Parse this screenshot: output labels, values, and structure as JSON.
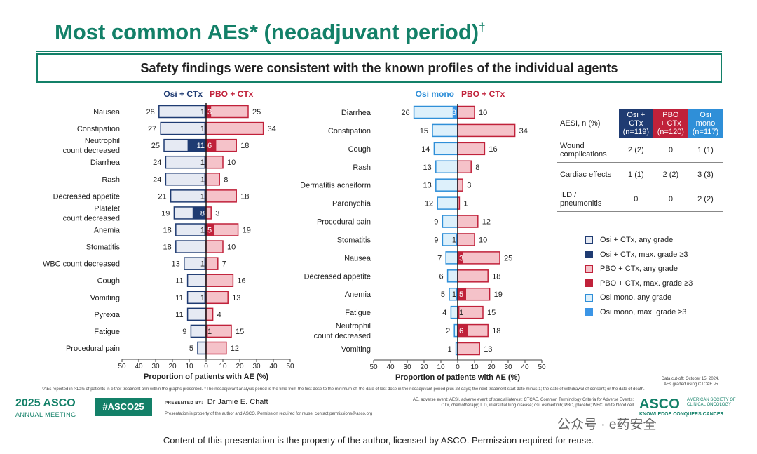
{
  "title": "Most common AEs* (neoadjuvant period)",
  "title_mark": "†",
  "banner": "Safety findings were consistent with the known profiles of the individual agents",
  "chart_data": [
    {
      "type": "bar",
      "subtype": "butterfly",
      "left_header": "Osi + CTx",
      "right_header": "PBO + CTx",
      "xlabel": "Proportion of patients with AE (%)",
      "xlim": [
        -50,
        50
      ],
      "xticks": [
        "50",
        "40",
        "30",
        "20",
        "10",
        "0",
        "10",
        "20",
        "30",
        "40",
        "50"
      ],
      "categories": [
        "Nausea",
        "Constipation",
        "Neutrophil count decreased",
        "Diarrhea",
        "Rash",
        "Decreased appetite",
        "Platelet count decreased",
        "Anemia",
        "Stomatitis",
        "WBC count decreased",
        "Cough",
        "Vomiting",
        "Pyrexia",
        "Fatigue",
        "Procedural pain"
      ],
      "series": [
        {
          "name": "Osi + CTx, any grade",
          "values": [
            28,
            27,
            25,
            24,
            24,
            21,
            19,
            18,
            18,
            13,
            11,
            11,
            11,
            9,
            5
          ]
        },
        {
          "name": "Osi + CTx, max. grade ≥3",
          "values": [
            1,
            1,
            11,
            1,
            1,
            1,
            8,
            1,
            0,
            1,
            0,
            1,
            0,
            0,
            0
          ]
        },
        {
          "name": "PBO + CTx, any grade",
          "values": [
            25,
            34,
            18,
            10,
            8,
            18,
            3,
            19,
            10,
            7,
            16,
            13,
            4,
            15,
            12
          ]
        },
        {
          "name": "PBO + CTx, max. grade ≥3",
          "values": [
            3,
            0,
            6,
            0,
            0,
            0,
            0,
            5,
            0,
            0,
            0,
            0,
            0,
            1,
            0
          ]
        }
      ]
    },
    {
      "type": "bar",
      "subtype": "butterfly",
      "left_header": "Osi mono",
      "right_header": "PBO + CTx",
      "xlabel": "Proportion of patients with AE (%)",
      "xlim": [
        -50,
        50
      ],
      "xticks": [
        "50",
        "40",
        "30",
        "20",
        "10",
        "0",
        "10",
        "20",
        "30",
        "40",
        "50"
      ],
      "categories": [
        "Diarrhea",
        "Constipation",
        "Cough",
        "Rash",
        "Dermatitis acneiform",
        "Paronychia",
        "Procedural pain",
        "Stomatitis",
        "Nausea",
        "Decreased appetite",
        "Anemia",
        "Fatigue",
        "Neutrophil count decreased",
        "Vomiting"
      ],
      "series": [
        {
          "name": "Osi mono, any grade",
          "values": [
            26,
            15,
            14,
            13,
            13,
            12,
            9,
            9,
            7,
            6,
            5,
            4,
            2,
            1
          ]
        },
        {
          "name": "Osi mono, max. grade ≥3",
          "values": [
            3,
            0,
            0,
            0,
            0,
            0,
            0,
            1,
            0,
            0,
            1,
            0,
            0,
            0
          ]
        },
        {
          "name": "PBO + CTx, any grade",
          "values": [
            10,
            34,
            16,
            8,
            3,
            1,
            12,
            10,
            25,
            18,
            19,
            15,
            18,
            13
          ]
        },
        {
          "name": "PBO + CTx, max. grade ≥3",
          "values": [
            0,
            0,
            0,
            0,
            0,
            0,
            0,
            0,
            3,
            0,
            5,
            1,
            6,
            0
          ]
        }
      ]
    }
  ],
  "aesi_table": {
    "header": "AESI, n (%)",
    "columns": [
      {
        "line1": "Osi +",
        "line2": "CTx",
        "line3": "(n=119)",
        "color": "#1f3b72"
      },
      {
        "line1": "PBO",
        "line2": "+ CTx",
        "line3": "(n=120)",
        "color": "#c0213a"
      },
      {
        "line1": "Osi",
        "line2": "mono",
        "line3": "(n=117)",
        "color": "#2f8fd8"
      }
    ],
    "rows": [
      {
        "line1": "Wound",
        "line2": "complications",
        "values": [
          "2 (2)",
          "0",
          "1 (1)"
        ]
      },
      {
        "line1": "Cardiac effects",
        "line2": "",
        "values": [
          "1 (1)",
          "2 (2)",
          "3 (3)"
        ]
      },
      {
        "line1": "ILD /",
        "line2": "pneumonitis",
        "values": [
          "0",
          "0",
          "2 (2)"
        ]
      }
    ]
  },
  "legend": [
    {
      "label": "Osi + CTx, any grade",
      "fill": "#e6eaf3",
      "border": "#1f3b72"
    },
    {
      "label": "Osi + CTx, max. grade ≥3",
      "fill": "#1f3b72",
      "border": "#1f3b72"
    },
    {
      "label": "PBO + CTx, any grade",
      "fill": "#f5c2c9",
      "border": "#c0213a"
    },
    {
      "label": "PBO + CTx, max. grade ≥3",
      "fill": "#c0213a",
      "border": "#c0213a"
    },
    {
      "label": "Osi mono, any grade",
      "fill": "#ddf0fb",
      "border": "#2f8fd8"
    },
    {
      "label": "Osi mono, max. grade ≥3",
      "fill": "#3b95e6",
      "border": "#3b95e6"
    }
  ],
  "colors": {
    "brand_green": "#138068",
    "osi_ctx": "#1f3b72",
    "pbo_ctx": "#c0213a",
    "osi_mono": "#2f8fd8"
  },
  "data_cutoff": "Data cut-off: October 15, 2024.",
  "ctcae_note": "AEs graded using CTCAE v5.",
  "footnote": "*AEs reported in >10% of patients in either treatment arm within the graphs presented. †The neoadjuvant analysis period is the time from the first dose to the minimum of: the date of last dose in the neoadjuvant period plus 28 days; the next treatment start date minus 1; the date of withdrawal of consent; or the date of death.",
  "asco_left": {
    "line1": "2025 ASCO",
    "line2": "ANNUAL MEETING"
  },
  "hashtag": "#ASCO25",
  "presented_by_label": "PRESENTED BY:",
  "presenter": "Dr Jamie E. Chaft",
  "property_note": "Presentation is property of the author and ASCO. Permission required for reuse; contact permissions@asco.org",
  "abbreviations": "AE, adverse event; AESI, adverse event of special interest; CTCAE, Common Terminology Criteria for Adverse Events; CTx, chemotherapy; ILD, interstitial lung disease; osi, osimertinib; PBO, placebo; WBC, white blood cell",
  "asco_right": {
    "name": "ASCO",
    "line1": "AMERICAN SOCIETY OF",
    "line2": "CLINICAL ONCOLOGY",
    "tagline": "KNOWLEDGE CONQUERS CANCER"
  },
  "watermark": "公众号 · e药安全",
  "bottom_note": "Content of this presentation is the property of the author, licensed by ASCO. Permission required for reuse."
}
